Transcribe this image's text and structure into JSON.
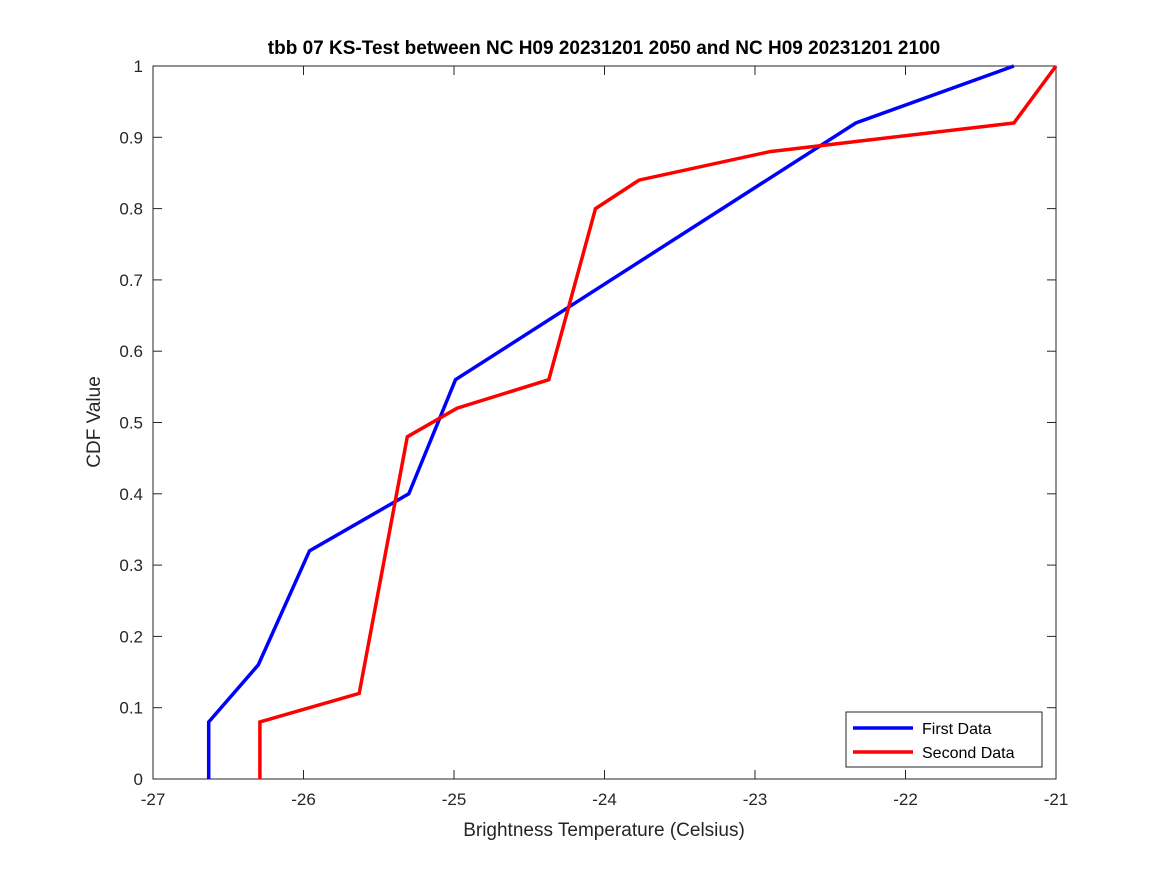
{
  "chart_data": {
    "type": "line",
    "title": "tbb 07 KS-Test between NC H09 20231201 2050 and NC H09 20231201 2100",
    "xlabel": "Brightness Temperature (Celsius)",
    "ylabel": "CDF Value",
    "xlim": [
      -27,
      -21
    ],
    "ylim": [
      0,
      1
    ],
    "xticks": [
      -27,
      -26,
      -25,
      -24,
      -23,
      -22,
      -21
    ],
    "yticks": [
      0,
      0.1,
      0.2,
      0.3,
      0.4,
      0.5,
      0.6,
      0.7,
      0.8,
      0.9,
      1
    ],
    "xtick_labels": [
      "-27",
      "-26",
      "-25",
      "-24",
      "-23",
      "-22",
      "-21"
    ],
    "ytick_labels": [
      "0",
      "0.1",
      "0.2",
      "0.3",
      "0.4",
      "0.5",
      "0.6",
      "0.7",
      "0.8",
      "0.9",
      "1"
    ],
    "grid": false,
    "legend_position": "bottom-right",
    "series": [
      {
        "name": "First Data",
        "color": "#0000ff",
        "x": [
          -26.63,
          -26.63,
          -26.3,
          -25.96,
          -25.3,
          -24.99,
          -22.33,
          -21.28
        ],
        "y": [
          0,
          0.08,
          0.16,
          0.32,
          0.4,
          0.56,
          0.92,
          1.0
        ]
      },
      {
        "name": "Second Data",
        "color": "#ff0000",
        "x": [
          -26.29,
          -26.29,
          -25.63,
          -25.31,
          -24.98,
          -24.37,
          -24.06,
          -23.77,
          -22.9,
          -21.28,
          -21.0
        ],
        "y": [
          0,
          0.08,
          0.12,
          0.48,
          0.52,
          0.56,
          0.8,
          0.84,
          0.88,
          0.92,
          1.0
        ]
      }
    ]
  }
}
